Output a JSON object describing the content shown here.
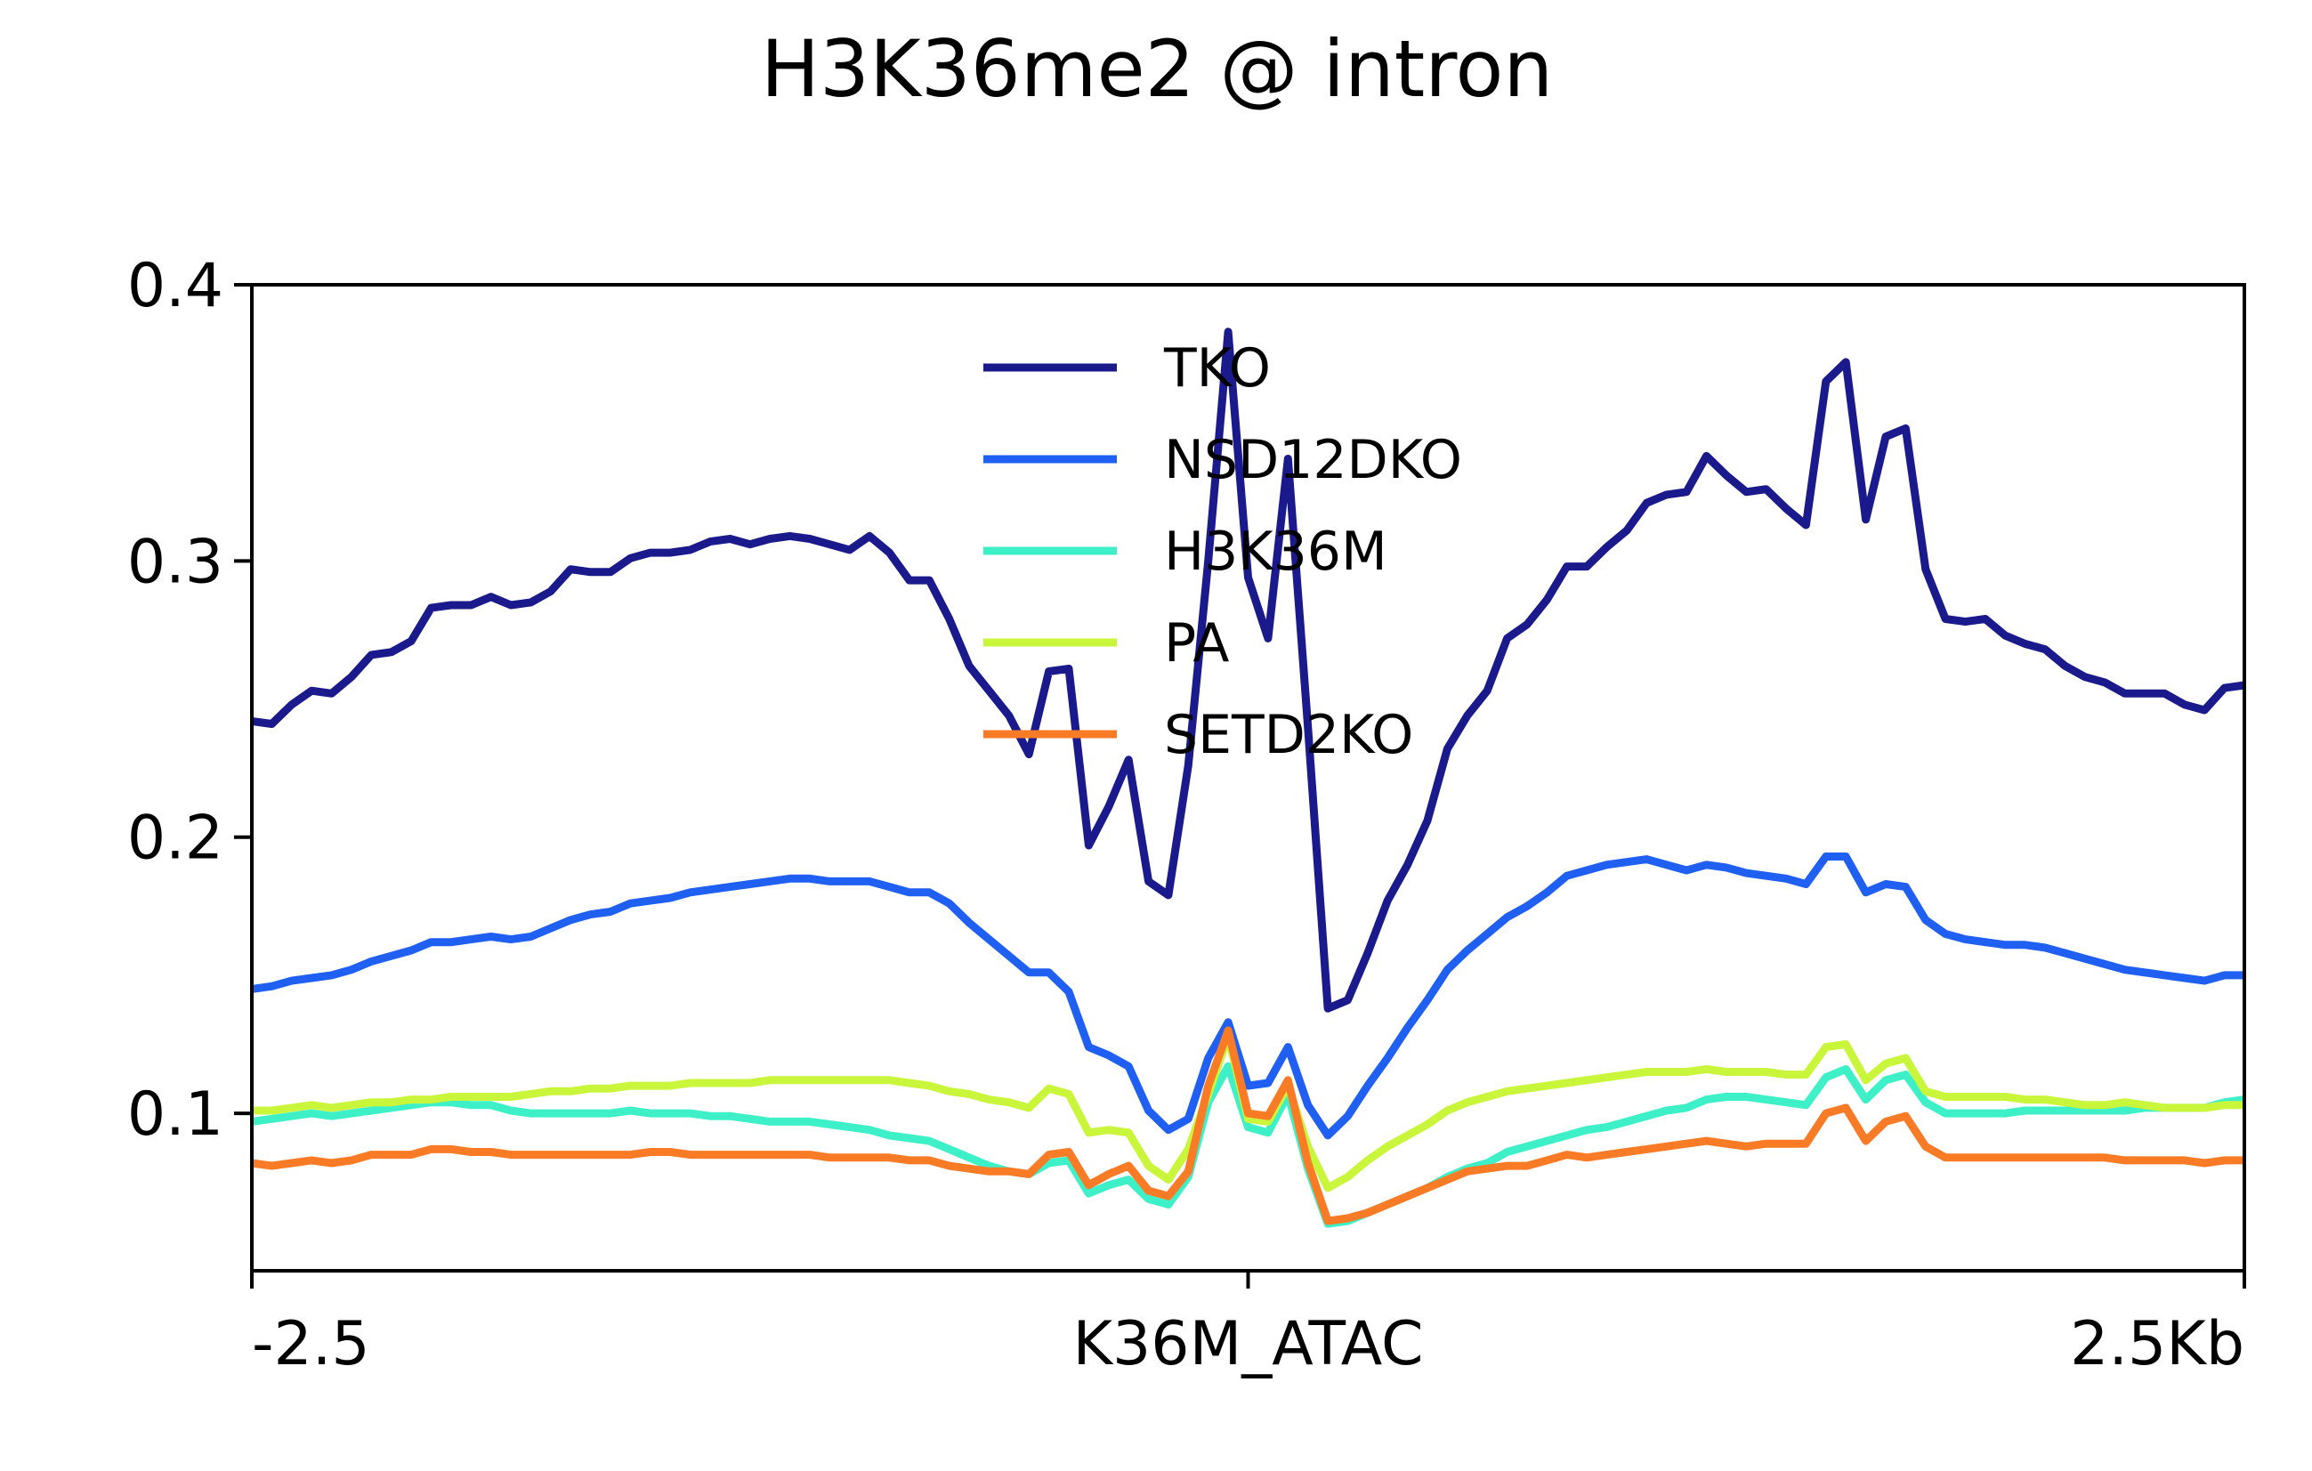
{
  "chart_data": {
    "type": "line",
    "title": "H3K36me2 @ intron",
    "xlabel": "",
    "ylabel": "",
    "x_ticks": [
      "-2.5",
      "K36M_ATAC",
      "2.5Kb"
    ],
    "x_tick_values": [
      -2.5,
      0,
      2.5
    ],
    "xlim": [
      -2.5,
      2.5
    ],
    "y_ticks": [
      "0.1",
      "0.2",
      "0.3",
      "0.4"
    ],
    "y_tick_values": [
      0.1,
      0.2,
      0.3,
      0.4
    ],
    "ylim": [
      0.043,
      0.4
    ],
    "grid": false,
    "legend_position": "top-center",
    "x": [
      -2.5,
      -2.45,
      -2.4,
      -2.35,
      -2.3,
      -2.25,
      -2.2,
      -2.15,
      -2.1,
      -2.05,
      -2.0,
      -1.95,
      -1.9,
      -1.85,
      -1.8,
      -1.75,
      -1.7,
      -1.65,
      -1.6,
      -1.55,
      -1.5,
      -1.45,
      -1.4,
      -1.35,
      -1.3,
      -1.25,
      -1.2,
      -1.15,
      -1.1,
      -1.05,
      -1.0,
      -0.95,
      -0.9,
      -0.85,
      -0.8,
      -0.75,
      -0.7,
      -0.65,
      -0.6,
      -0.55,
      -0.5,
      -0.45,
      -0.4,
      -0.35,
      -0.3,
      -0.25,
      -0.2,
      -0.15,
      -0.1,
      -0.05,
      0.0,
      0.05,
      0.1,
      0.15,
      0.2,
      0.25,
      0.3,
      0.35,
      0.4,
      0.45,
      0.5,
      0.55,
      0.6,
      0.65,
      0.7,
      0.75,
      0.8,
      0.85,
      0.9,
      0.95,
      1.0,
      1.05,
      1.1,
      1.15,
      1.2,
      1.25,
      1.3,
      1.35,
      1.4,
      1.45,
      1.5,
      1.55,
      1.6,
      1.65,
      1.7,
      1.75,
      1.8,
      1.85,
      1.9,
      1.95,
      2.0,
      2.05,
      2.1,
      2.15,
      2.2,
      2.25,
      2.3,
      2.35,
      2.4,
      2.45,
      2.5
    ],
    "series": [
      {
        "name": "TKO",
        "color": "#1a1a8c",
        "values": [
          0.242,
          0.241,
          0.248,
          0.253,
          0.252,
          0.258,
          0.266,
          0.267,
          0.271,
          0.283,
          0.284,
          0.284,
          0.287,
          0.284,
          0.285,
          0.289,
          0.297,
          0.296,
          0.296,
          0.301,
          0.303,
          0.303,
          0.304,
          0.307,
          0.308,
          0.306,
          0.308,
          0.309,
          0.308,
          0.306,
          0.304,
          0.309,
          0.303,
          0.293,
          0.293,
          0.279,
          0.262,
          0.253,
          0.244,
          0.23,
          0.26,
          0.261,
          0.197,
          0.211,
          0.228,
          0.184,
          0.179,
          0.226,
          0.3,
          0.383,
          0.294,
          0.272,
          0.337,
          0.24,
          0.138,
          0.141,
          0.158,
          0.177,
          0.19,
          0.206,
          0.232,
          0.244,
          0.253,
          0.272,
          0.277,
          0.286,
          0.298,
          0.298,
          0.305,
          0.311,
          0.321,
          0.324,
          0.325,
          0.338,
          0.331,
          0.325,
          0.326,
          0.319,
          0.313,
          0.365,
          0.372,
          0.315,
          0.345,
          0.348,
          0.297,
          0.279,
          0.278,
          0.279,
          0.273,
          0.27,
          0.268,
          0.262,
          0.258,
          0.256,
          0.252,
          0.252,
          0.252,
          0.248,
          0.246,
          0.254,
          0.255
        ]
      },
      {
        "name": "NSD12DKO",
        "color": "#1f5ff2",
        "values": [
          0.145,
          0.146,
          0.148,
          0.149,
          0.15,
          0.152,
          0.155,
          0.157,
          0.159,
          0.162,
          0.162,
          0.163,
          0.164,
          0.163,
          0.164,
          0.167,
          0.17,
          0.172,
          0.173,
          0.176,
          0.177,
          0.178,
          0.18,
          0.181,
          0.182,
          0.183,
          0.184,
          0.185,
          0.185,
          0.184,
          0.184,
          0.184,
          0.182,
          0.18,
          0.18,
          0.176,
          0.169,
          0.163,
          0.157,
          0.151,
          0.151,
          0.144,
          0.124,
          0.121,
          0.117,
          0.101,
          0.094,
          0.098,
          0.12,
          0.133,
          0.11,
          0.111,
          0.124,
          0.103,
          0.092,
          0.099,
          0.11,
          0.12,
          0.131,
          0.141,
          0.152,
          0.159,
          0.165,
          0.171,
          0.175,
          0.18,
          0.186,
          0.188,
          0.19,
          0.191,
          0.192,
          0.19,
          0.188,
          0.19,
          0.189,
          0.187,
          0.186,
          0.185,
          0.183,
          0.193,
          0.193,
          0.18,
          0.183,
          0.182,
          0.17,
          0.165,
          0.163,
          0.162,
          0.161,
          0.161,
          0.16,
          0.158,
          0.156,
          0.154,
          0.152,
          0.151,
          0.15,
          0.149,
          0.148,
          0.15,
          0.15
        ]
      },
      {
        "name": "H3K36M",
        "color": "#3ef0c8",
        "values": [
          0.097,
          0.098,
          0.099,
          0.1,
          0.099,
          0.1,
          0.101,
          0.102,
          0.103,
          0.104,
          0.104,
          0.103,
          0.103,
          0.101,
          0.1,
          0.1,
          0.1,
          0.1,
          0.1,
          0.101,
          0.1,
          0.1,
          0.1,
          0.099,
          0.099,
          0.098,
          0.097,
          0.097,
          0.097,
          0.096,
          0.095,
          0.094,
          0.092,
          0.091,
          0.09,
          0.087,
          0.084,
          0.081,
          0.079,
          0.078,
          0.082,
          0.083,
          0.071,
          0.074,
          0.076,
          0.069,
          0.067,
          0.077,
          0.104,
          0.117,
          0.095,
          0.093,
          0.107,
          0.08,
          0.06,
          0.061,
          0.064,
          0.067,
          0.07,
          0.073,
          0.077,
          0.08,
          0.082,
          0.086,
          0.088,
          0.09,
          0.092,
          0.094,
          0.095,
          0.097,
          0.099,
          0.101,
          0.102,
          0.105,
          0.106,
          0.106,
          0.105,
          0.104,
          0.103,
          0.113,
          0.116,
          0.105,
          0.112,
          0.114,
          0.104,
          0.1,
          0.1,
          0.1,
          0.1,
          0.101,
          0.101,
          0.101,
          0.101,
          0.101,
          0.101,
          0.102,
          0.102,
          0.102,
          0.102,
          0.104,
          0.105
        ]
      },
      {
        "name": "PA",
        "color": "#c9f53a",
        "values": [
          0.101,
          0.101,
          0.102,
          0.103,
          0.102,
          0.103,
          0.104,
          0.104,
          0.105,
          0.105,
          0.106,
          0.106,
          0.106,
          0.106,
          0.107,
          0.108,
          0.108,
          0.109,
          0.109,
          0.11,
          0.11,
          0.11,
          0.111,
          0.111,
          0.111,
          0.111,
          0.112,
          0.112,
          0.112,
          0.112,
          0.112,
          0.112,
          0.112,
          0.111,
          0.11,
          0.108,
          0.107,
          0.105,
          0.104,
          0.102,
          0.109,
          0.107,
          0.093,
          0.094,
          0.093,
          0.081,
          0.076,
          0.087,
          0.107,
          0.128,
          0.098,
          0.097,
          0.11,
          0.088,
          0.073,
          0.077,
          0.083,
          0.088,
          0.092,
          0.096,
          0.101,
          0.104,
          0.106,
          0.108,
          0.109,
          0.11,
          0.111,
          0.112,
          0.113,
          0.114,
          0.115,
          0.115,
          0.115,
          0.116,
          0.115,
          0.115,
          0.115,
          0.114,
          0.114,
          0.124,
          0.125,
          0.112,
          0.118,
          0.12,
          0.108,
          0.106,
          0.106,
          0.106,
          0.106,
          0.105,
          0.105,
          0.104,
          0.103,
          0.103,
          0.104,
          0.103,
          0.102,
          0.102,
          0.102,
          0.103,
          0.103
        ]
      },
      {
        "name": "SETD2KO",
        "color": "#f97b26",
        "values": [
          0.082,
          0.081,
          0.082,
          0.083,
          0.082,
          0.083,
          0.085,
          0.085,
          0.085,
          0.087,
          0.087,
          0.086,
          0.086,
          0.085,
          0.085,
          0.085,
          0.085,
          0.085,
          0.085,
          0.085,
          0.086,
          0.086,
          0.085,
          0.085,
          0.085,
          0.085,
          0.085,
          0.085,
          0.085,
          0.084,
          0.084,
          0.084,
          0.084,
          0.083,
          0.083,
          0.081,
          0.08,
          0.079,
          0.079,
          0.078,
          0.085,
          0.086,
          0.074,
          0.078,
          0.081,
          0.072,
          0.07,
          0.079,
          0.11,
          0.13,
          0.1,
          0.099,
          0.112,
          0.082,
          0.061,
          0.062,
          0.064,
          0.067,
          0.07,
          0.073,
          0.076,
          0.079,
          0.08,
          0.081,
          0.081,
          0.083,
          0.085,
          0.084,
          0.085,
          0.086,
          0.087,
          0.088,
          0.089,
          0.09,
          0.089,
          0.088,
          0.089,
          0.089,
          0.089,
          0.1,
          0.102,
          0.09,
          0.097,
          0.099,
          0.088,
          0.084,
          0.084,
          0.084,
          0.084,
          0.084,
          0.084,
          0.084,
          0.084,
          0.084,
          0.083,
          0.083,
          0.083,
          0.083,
          0.082,
          0.083,
          0.083
        ]
      }
    ]
  }
}
